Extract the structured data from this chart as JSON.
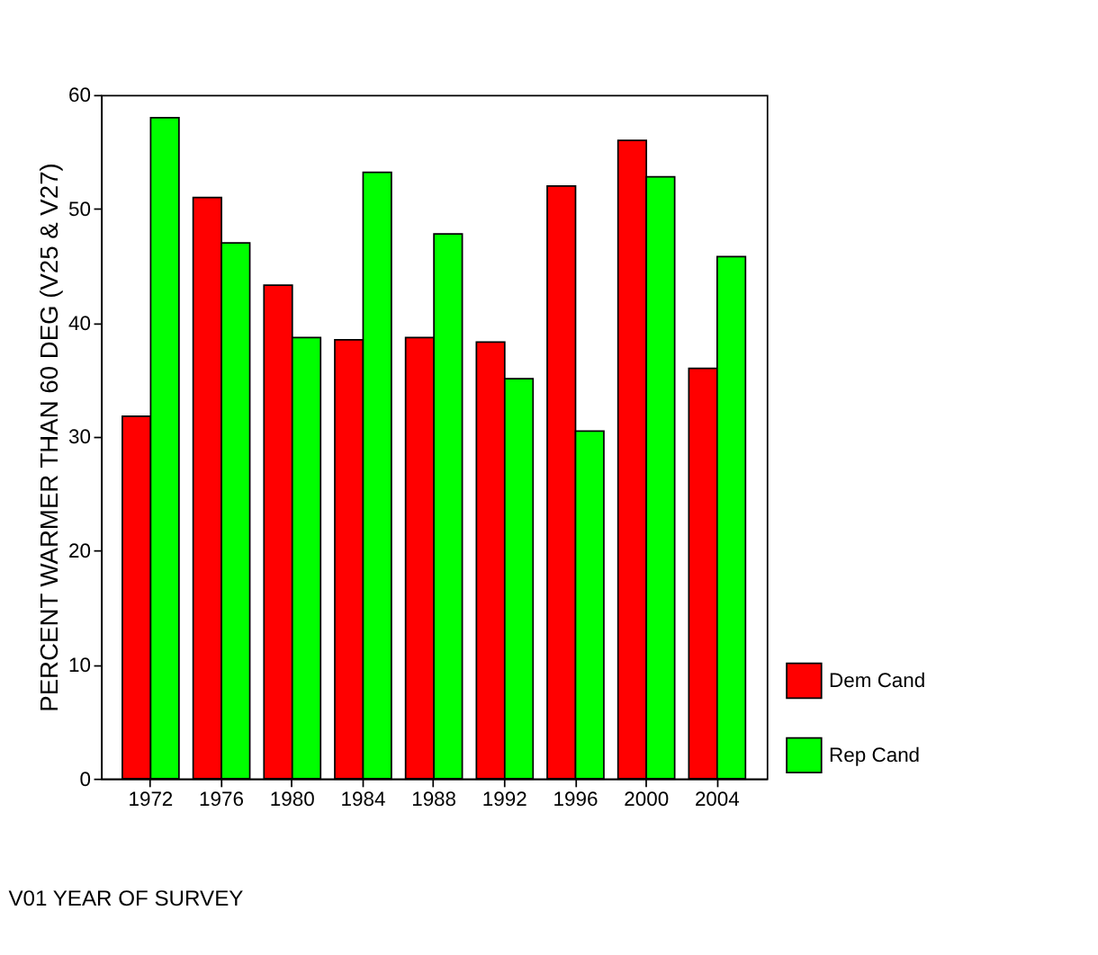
{
  "chart_data": {
    "type": "bar",
    "xlabel": "V01 YEAR OF SURVEY",
    "ylabel": "PERCENT WARMER THAN 60 DEG (V25 & V27)",
    "categories": [
      "1972",
      "1976",
      "1980",
      "1984",
      "1988",
      "1992",
      "1996",
      "2000",
      "2004"
    ],
    "series": [
      {
        "name": "Dem Cand",
        "color": "#ff0000",
        "values": [
          31.8,
          51,
          43.3,
          38.5,
          38.7,
          38.3,
          52,
          56,
          36
        ]
      },
      {
        "name": "Rep Cand",
        "color": "#00ff00",
        "values": [
          58,
          47,
          38.7,
          53.2,
          47.8,
          35.1,
          30.5,
          52.8,
          45.8
        ]
      }
    ],
    "ylim": [
      0,
      60
    ],
    "yticks": [
      0,
      10,
      20,
      30,
      40,
      50,
      60
    ],
    "grid": false,
    "legend": "bottom right"
  }
}
